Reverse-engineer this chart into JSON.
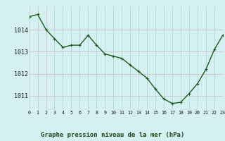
{
  "x": [
    0,
    1,
    2,
    3,
    4,
    5,
    6,
    7,
    8,
    9,
    10,
    11,
    12,
    13,
    14,
    15,
    16,
    17,
    18,
    19,
    20,
    21,
    22,
    23
  ],
  "y": [
    1014.6,
    1014.7,
    1014.0,
    1013.6,
    1013.2,
    1013.3,
    1013.3,
    1013.75,
    1013.3,
    1012.9,
    1012.8,
    1012.7,
    1012.4,
    1012.1,
    1011.8,
    1011.3,
    1010.85,
    1010.65,
    1010.7,
    1011.1,
    1011.55,
    1012.2,
    1013.1,
    1013.75
  ],
  "line_color": "#1a5c1a",
  "marker_color": "#1a5c1a",
  "bg_color": "#d4f0f0",
  "grid_color_v": "#c8c8c8",
  "grid_color_h": "#c8b8b8",
  "xlabel": "Graphe pression niveau de la mer (hPa)",
  "ylim": [
    1010.35,
    1015.1
  ],
  "xlim": [
    0,
    23
  ],
  "ytick_values": [
    1011,
    1012,
    1013,
    1014
  ],
  "xtick_values": [
    0,
    1,
    2,
    3,
    4,
    5,
    6,
    7,
    8,
    9,
    10,
    11,
    12,
    13,
    14,
    15,
    16,
    17,
    18,
    19,
    20,
    21,
    22,
    23
  ],
  "marker_size": 3.0,
  "line_width": 1.0
}
